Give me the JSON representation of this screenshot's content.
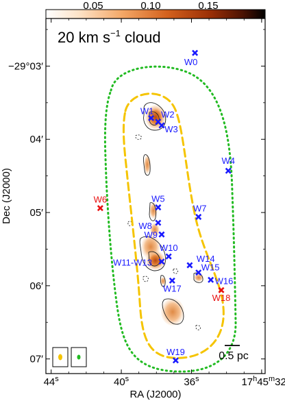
{
  "chart_data": {
    "type": "scatter",
    "title": "20 km s⁻¹ cloud",
    "xlabel": "RA (J2000)",
    "ylabel": "Dec (J2000)",
    "x_ticks": [
      {
        "label": "44",
        "sup": "s",
        "pre": "",
        "value": 44
      },
      {
        "label": "40",
        "sup": "s",
        "pre": "",
        "value": 40
      },
      {
        "label": "36",
        "sup": "s",
        "pre": "",
        "value": 36
      },
      {
        "label": "17",
        "sup": "h",
        "pre": "45",
        "value": 32
      }
    ],
    "y_ticks": [
      {
        "label": "−29°03′",
        "value": 3
      },
      {
        "label": "04′",
        "value": 4
      },
      {
        "label": "05′",
        "value": 5
      },
      {
        "label": "06′",
        "value": 6
      },
      {
        "label": "07′",
        "value": 7
      }
    ],
    "xlim": [
      44.3,
      31.8
    ],
    "ylim_arcmin": [
      2.35,
      7.2
    ],
    "colorbar": {
      "ticks": [
        "0.05",
        "0.10",
        "0.15"
      ],
      "tick_values": [
        0.05,
        0.1,
        0.15
      ],
      "range": [
        0.0,
        0.19
      ]
    },
    "scale_bar": "0.5 pc",
    "sources": [
      {
        "name": "W0",
        "ra_s": 35.8,
        "dec_arcmin": 2.82,
        "color": "#1a1aff"
      },
      {
        "name": "W1",
        "ra_s": 38.3,
        "dec_arcmin": 3.71,
        "color": "#1a1aff"
      },
      {
        "name": "W2",
        "ra_s": 37.9,
        "dec_arcmin": 3.76,
        "color": "#1a1aff"
      },
      {
        "name": "W3",
        "ra_s": 37.7,
        "dec_arcmin": 3.81,
        "color": "#1a1aff"
      },
      {
        "name": "W4",
        "ra_s": 33.9,
        "dec_arcmin": 4.43,
        "color": "#1a1aff"
      },
      {
        "name": "W5",
        "ra_s": 37.9,
        "dec_arcmin": 4.93,
        "color": "#1a1aff"
      },
      {
        "name": "W6",
        "ra_s": 41.2,
        "dec_arcmin": 4.94,
        "color": "#e81010"
      },
      {
        "name": "W7",
        "ra_s": 35.6,
        "dec_arcmin": 5.06,
        "color": "#1a1aff"
      },
      {
        "name": "W8",
        "ra_s": 37.9,
        "dec_arcmin": 5.14,
        "color": "#1a1aff"
      },
      {
        "name": "W9",
        "ra_s": 37.7,
        "dec_arcmin": 5.3,
        "color": "#1a1aff"
      },
      {
        "name": "W10",
        "ra_s": 37.3,
        "dec_arcmin": 5.6,
        "color": "#1a1aff"
      },
      {
        "name": "W11-W13",
        "ra_s": 37.7,
        "dec_arcmin": 5.67,
        "color": "#1a1aff"
      },
      {
        "name": "W14",
        "ra_s": 36.1,
        "dec_arcmin": 5.72,
        "color": "#1a1aff"
      },
      {
        "name": "W15",
        "ra_s": 35.6,
        "dec_arcmin": 5.82,
        "color": "#1a1aff"
      },
      {
        "name": "W16",
        "ra_s": 34.9,
        "dec_arcmin": 5.92,
        "color": "#1a1aff"
      },
      {
        "name": "W17",
        "ra_s": 37.1,
        "dec_arcmin": 5.93,
        "color": "#1a1aff"
      },
      {
        "name": "W18",
        "ra_s": 34.3,
        "dec_arcmin": 6.06,
        "color": "#e81010"
      },
      {
        "name": "W19",
        "ra_s": 36.9,
        "dec_arcmin": 7.02,
        "color": "#1a1aff"
      }
    ]
  }
}
